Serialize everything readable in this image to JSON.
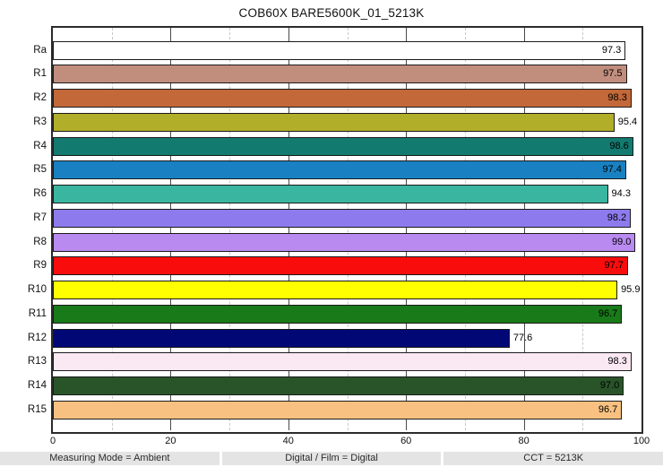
{
  "chart_data": {
    "type": "bar",
    "orientation": "horizontal",
    "title": "COB60X BARE5600K_01_5213K",
    "categories": [
      "Ra",
      "R1",
      "R2",
      "R3",
      "R4",
      "R5",
      "R6",
      "R7",
      "R8",
      "R9",
      "R10",
      "R11",
      "R12",
      "R13",
      "R14",
      "R15"
    ],
    "values": [
      97.3,
      97.5,
      98.3,
      95.4,
      98.6,
      97.4,
      94.3,
      98.2,
      99.0,
      97.7,
      95.9,
      96.7,
      77.6,
      98.3,
      97.0,
      96.7
    ],
    "value_labels": [
      "97.3",
      "97.5",
      "98.3",
      "95.4",
      "98.6",
      "97.4",
      "94.3",
      "98.2",
      "99.0",
      "97.7",
      "95.9",
      "96.7",
      "77.6",
      "98.3",
      "97.0",
      "96.7"
    ],
    "bar_colors": [
      "#ffffff",
      "#c18e7e",
      "#c26839",
      "#b1ae2a",
      "#137a70",
      "#1981c1",
      "#39b5a0",
      "#8d7bee",
      "#b98af0",
      "#f90c0c",
      "#ffff00",
      "#187a18",
      "#010876",
      "#fae8f3",
      "#295429",
      "#f9c181"
    ],
    "xlabel": "",
    "ylabel": "",
    "xlim": [
      0,
      100
    ],
    "x_tick_labels": [
      "0",
      "20",
      "40",
      "60",
      "80",
      "100"
    ],
    "x_ticks_major": [
      20,
      40,
      60,
      80
    ],
    "x_ticks_minor": [
      10,
      30,
      50,
      70,
      90
    ],
    "grid": true,
    "legend": false
  },
  "footer": {
    "cells": [
      {
        "text": "Measuring Mode = Ambient"
      },
      {
        "text": "Digital / Film = Digital"
      },
      {
        "text": "CCT = 5213K"
      }
    ]
  }
}
